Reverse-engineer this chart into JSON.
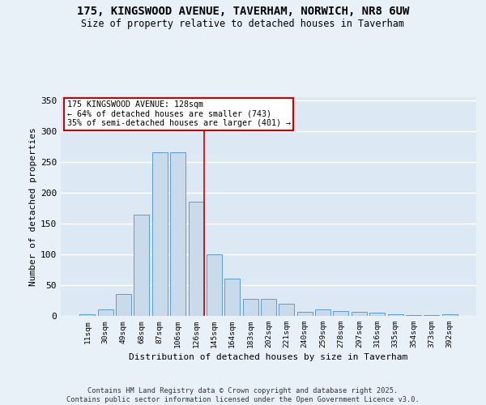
{
  "title_line1": "175, KINGSWOOD AVENUE, TAVERHAM, NORWICH, NR8 6UW",
  "title_line2": "Size of property relative to detached houses in Taverham",
  "xlabel": "Distribution of detached houses by size in Taverham",
  "ylabel": "Number of detached properties",
  "bar_labels": [
    "11sqm",
    "30sqm",
    "49sqm",
    "68sqm",
    "87sqm",
    "106sqm",
    "126sqm",
    "145sqm",
    "164sqm",
    "183sqm",
    "202sqm",
    "221sqm",
    "240sqm",
    "259sqm",
    "278sqm",
    "297sqm",
    "316sqm",
    "335sqm",
    "354sqm",
    "373sqm",
    "392sqm"
  ],
  "bar_values": [
    2,
    10,
    35,
    165,
    265,
    265,
    185,
    100,
    60,
    28,
    28,
    20,
    7,
    10,
    8,
    7,
    5,
    2,
    1,
    1,
    3
  ],
  "bar_color": "#c9daea",
  "bar_edge_color": "#5b9bd5",
  "background_color": "#dce9f5",
  "fig_background_color": "#e8f0f8",
  "grid_color": "#ffffff",
  "red_line_index": 6.43,
  "annotation_text": "175 KINGSWOOD AVENUE: 128sqm\n← 64% of detached houses are smaller (743)\n35% of semi-detached houses are larger (401) →",
  "annotation_box_color": "#ffffff",
  "annotation_box_edge": "#cc0000",
  "footer_text": "Contains HM Land Registry data © Crown copyright and database right 2025.\nContains public sector information licensed under the Open Government Licence v3.0.",
  "ylim": [
    0,
    355
  ],
  "yticks": [
    0,
    50,
    100,
    150,
    200,
    250,
    300,
    350
  ]
}
